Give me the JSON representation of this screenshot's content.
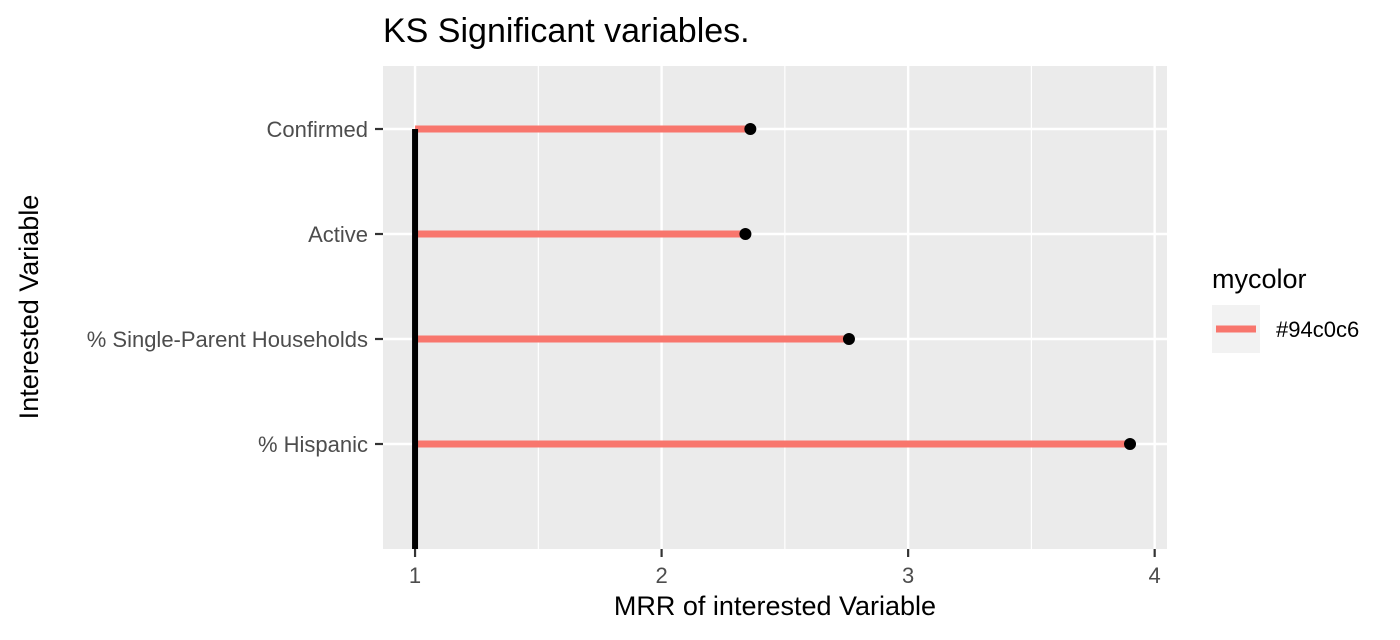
{
  "chart_data": {
    "type": "lollipop",
    "title": "KS Significant variables.",
    "xlabel": "MRR of interested Variable",
    "ylabel": "Interested Variable",
    "xlim": [
      0.87,
      4.05
    ],
    "x_ticks": [
      1,
      2,
      3,
      4
    ],
    "x_tick_labels": [
      "1",
      "2",
      "3",
      "4"
    ],
    "categories": [
      "Confirmed",
      "Active",
      "% Single-Parent Households",
      "% Hispanic"
    ],
    "baseline": 1,
    "values": [
      2.36,
      2.34,
      2.76,
      3.9
    ],
    "grid": true,
    "legend": {
      "title": "mycolor",
      "entries": [
        "#94c0c6"
      ],
      "position": "right"
    },
    "colors": {
      "segment": "#F8766D",
      "point": "#000000",
      "reference_line": "#000000",
      "panel_bg": "#EBEBEB",
      "grid": "#FFFFFF"
    }
  }
}
